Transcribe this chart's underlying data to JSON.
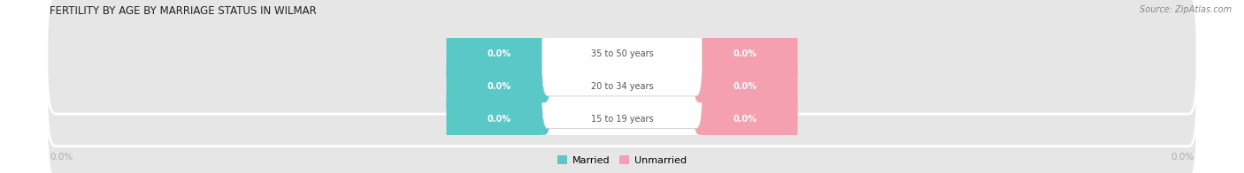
{
  "title": "FERTILITY BY AGE BY MARRIAGE STATUS IN WILMAR",
  "source": "Source: ZipAtlas.com",
  "categories": [
    "15 to 19 years",
    "20 to 34 years",
    "35 to 50 years"
  ],
  "married_values": [
    0.0,
    0.0,
    0.0
  ],
  "unmarried_values": [
    0.0,
    0.0,
    0.0
  ],
  "married_color": "#5bc8c8",
  "unmarried_color": "#f4a0b0",
  "bar_bg_color": "#e6e6e6",
  "label_color": "#ffffff",
  "category_text_color": "#555555",
  "title_color": "#222222",
  "source_color": "#888888",
  "axis_label_color": "#aaaaaa",
  "legend_married": "Married",
  "legend_unmarried": "Unmarried",
  "figsize": [
    14.06,
    1.96
  ],
  "dpi": 100
}
